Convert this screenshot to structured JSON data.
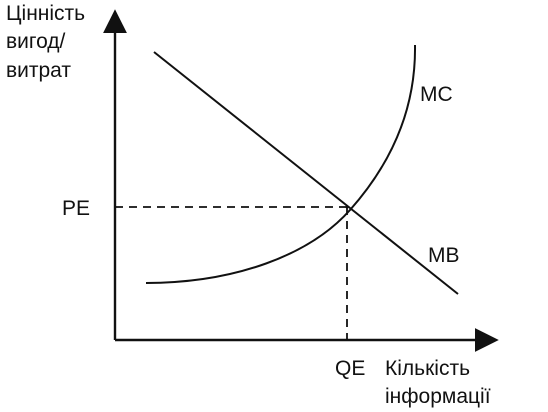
{
  "axes": {
    "y_label": "Цінність\nвигод/\nвитрат",
    "x_label": "Кількість\nінформації"
  },
  "curves": {
    "mc_label": "MC",
    "mb_label": "MB"
  },
  "equilibrium": {
    "price_label": "PE",
    "quantity_label": "QE"
  },
  "colors": {
    "line": "#111111"
  }
}
